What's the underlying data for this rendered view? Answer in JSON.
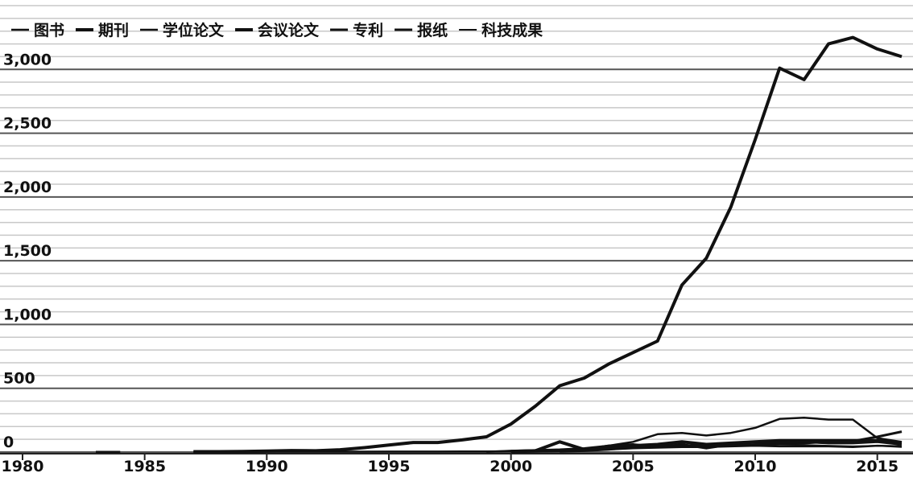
{
  "chart_data": {
    "type": "line",
    "x": [
      1980,
      1981,
      1982,
      1983,
      1984,
      1985,
      1986,
      1987,
      1988,
      1989,
      1990,
      1991,
      1992,
      1993,
      1994,
      1995,
      1996,
      1997,
      1998,
      1999,
      2000,
      2001,
      2002,
      2003,
      2004,
      2005,
      2006,
      2007,
      2008,
      2009,
      2010,
      2011,
      2012,
      2013,
      2014,
      2015,
      2016
    ],
    "series": [
      {
        "name": "图书",
        "color": "#111111",
        "values": [
          null,
          null,
          null,
          2,
          2,
          null,
          null,
          2,
          2,
          2,
          3,
          3,
          3,
          3,
          3,
          4,
          4,
          4,
          5,
          5,
          6,
          8,
          10,
          12,
          20,
          30,
          35,
          40,
          40,
          45,
          50,
          45,
          45,
          45,
          40,
          50,
          45
        ]
      },
      {
        "name": "期刊",
        "color": "#111111",
        "values": [
          null,
          null,
          null,
          null,
          null,
          null,
          null,
          3,
          3,
          5,
          8,
          12,
          10,
          18,
          35,
          55,
          75,
          75,
          95,
          120,
          220,
          360,
          520,
          580,
          690,
          780,
          870,
          1310,
          1520,
          1920,
          2450,
          3010,
          2920,
          3200,
          3250,
          3160,
          3100
        ]
      },
      {
        "name": "学位论文",
        "color": "#111111",
        "values": [
          null,
          null,
          null,
          null,
          null,
          null,
          null,
          null,
          null,
          null,
          null,
          null,
          null,
          null,
          null,
          null,
          null,
          null,
          null,
          2,
          10,
          15,
          20,
          30,
          50,
          80,
          140,
          150,
          130,
          150,
          190,
          260,
          270,
          255,
          255,
          110,
          80
        ]
      },
      {
        "name": "会议论文",
        "color": "#111111",
        "values": [
          null,
          null,
          null,
          null,
          null,
          null,
          null,
          null,
          null,
          null,
          null,
          null,
          null,
          null,
          null,
          null,
          null,
          null,
          null,
          null,
          5,
          10,
          80,
          20,
          40,
          50,
          60,
          80,
          60,
          70,
          80,
          90,
          90,
          90,
          90,
          90,
          70
        ]
      },
      {
        "name": "专利",
        "color": "#111111",
        "values": [
          null,
          null,
          null,
          null,
          null,
          null,
          null,
          null,
          null,
          null,
          null,
          null,
          null,
          null,
          null,
          null,
          null,
          null,
          null,
          null,
          null,
          null,
          5,
          10,
          20,
          40,
          40,
          50,
          55,
          65,
          75,
          70,
          70,
          80,
          85,
          120,
          160
        ]
      },
      {
        "name": "报纸",
        "color": "#111111",
        "values": [
          null,
          null,
          null,
          null,
          null,
          null,
          null,
          null,
          null,
          null,
          null,
          null,
          null,
          null,
          null,
          null,
          null,
          null,
          null,
          null,
          2,
          5,
          10,
          20,
          50,
          60,
          40,
          60,
          30,
          60,
          80,
          75,
          80,
          70,
          70,
          80,
          60
        ]
      },
      {
        "name": "科技成果",
        "color": "#111111",
        "values": [
          null,
          null,
          null,
          null,
          null,
          null,
          null,
          null,
          null,
          null,
          null,
          null,
          null,
          null,
          null,
          null,
          null,
          null,
          null,
          null,
          2,
          3,
          5,
          10,
          30,
          40,
          50,
          55,
          50,
          55,
          60,
          60,
          55,
          50,
          45,
          50,
          40
        ]
      }
    ],
    "xlim": [
      1980,
      2016
    ],
    "xticks": [
      1980,
      1985,
      1990,
      1995,
      2000,
      2005,
      2010,
      2015
    ],
    "ylim": [
      0,
      3500
    ],
    "yticks": [
      0,
      500,
      {
        "value": 1000,
        "label": "1,000"
      },
      {
        "value": 1500,
        "label": "1,500"
      },
      {
        "value": 2000,
        "label": "2,000"
      },
      {
        "value": 2500,
        "label": "2,500"
      },
      {
        "value": 3000,
        "label": "3,000"
      }
    ],
    "minor_yticks": [
      100,
      200,
      300,
      400,
      600,
      700,
      800,
      900,
      1100,
      1200,
      1300,
      1400,
      1600,
      1700,
      1800,
      1900,
      2100,
      2200,
      2300,
      2400,
      2600,
      2700,
      2800,
      2900,
      3100,
      3200,
      3300,
      3400,
      3500
    ],
    "grid": true,
    "legend": "top-left"
  }
}
